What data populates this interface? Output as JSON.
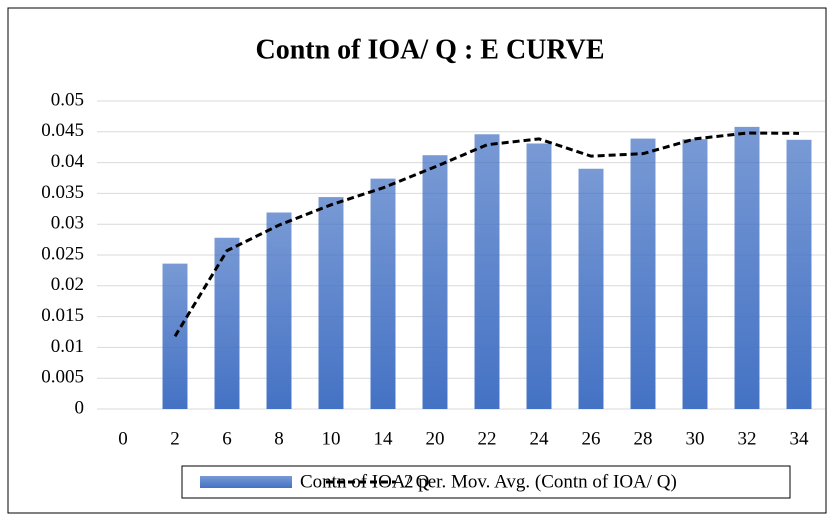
{
  "chart_data": {
    "type": "bar",
    "title": "Contn of IOA/ Q  : E CURVE",
    "categories": [
      "0",
      "2",
      "6",
      "8",
      "10",
      "14",
      "20",
      "22",
      "24",
      "26",
      "28",
      "30",
      "32",
      "34"
    ],
    "series": [
      {
        "name": "Contn of IOA/ Q",
        "type": "bar",
        "color": "#4472c4",
        "values": [
          0,
          0.0236,
          0.0278,
          0.0319,
          0.0344,
          0.0374,
          0.0412,
          0.0446,
          0.0431,
          0.039,
          0.0439,
          0.0438,
          0.0458,
          0.0437
        ]
      },
      {
        "name": "2 per. Mov. Avg. (Contn of IOA/ Q)",
        "type": "line",
        "color": "#000000",
        "values": [
          null,
          0.0118,
          0.0257,
          0.02985,
          0.03315,
          0.0359,
          0.0393,
          0.0429,
          0.04385,
          0.04105,
          0.04145,
          0.04385,
          0.0448,
          0.04475
        ]
      }
    ],
    "ylim": [
      0,
      0.05
    ],
    "yticks": [
      0,
      0.005,
      0.01,
      0.015,
      0.02,
      0.025,
      0.03,
      0.035,
      0.04,
      0.045,
      0.05
    ],
    "grid": true,
    "legend": "bottom"
  }
}
